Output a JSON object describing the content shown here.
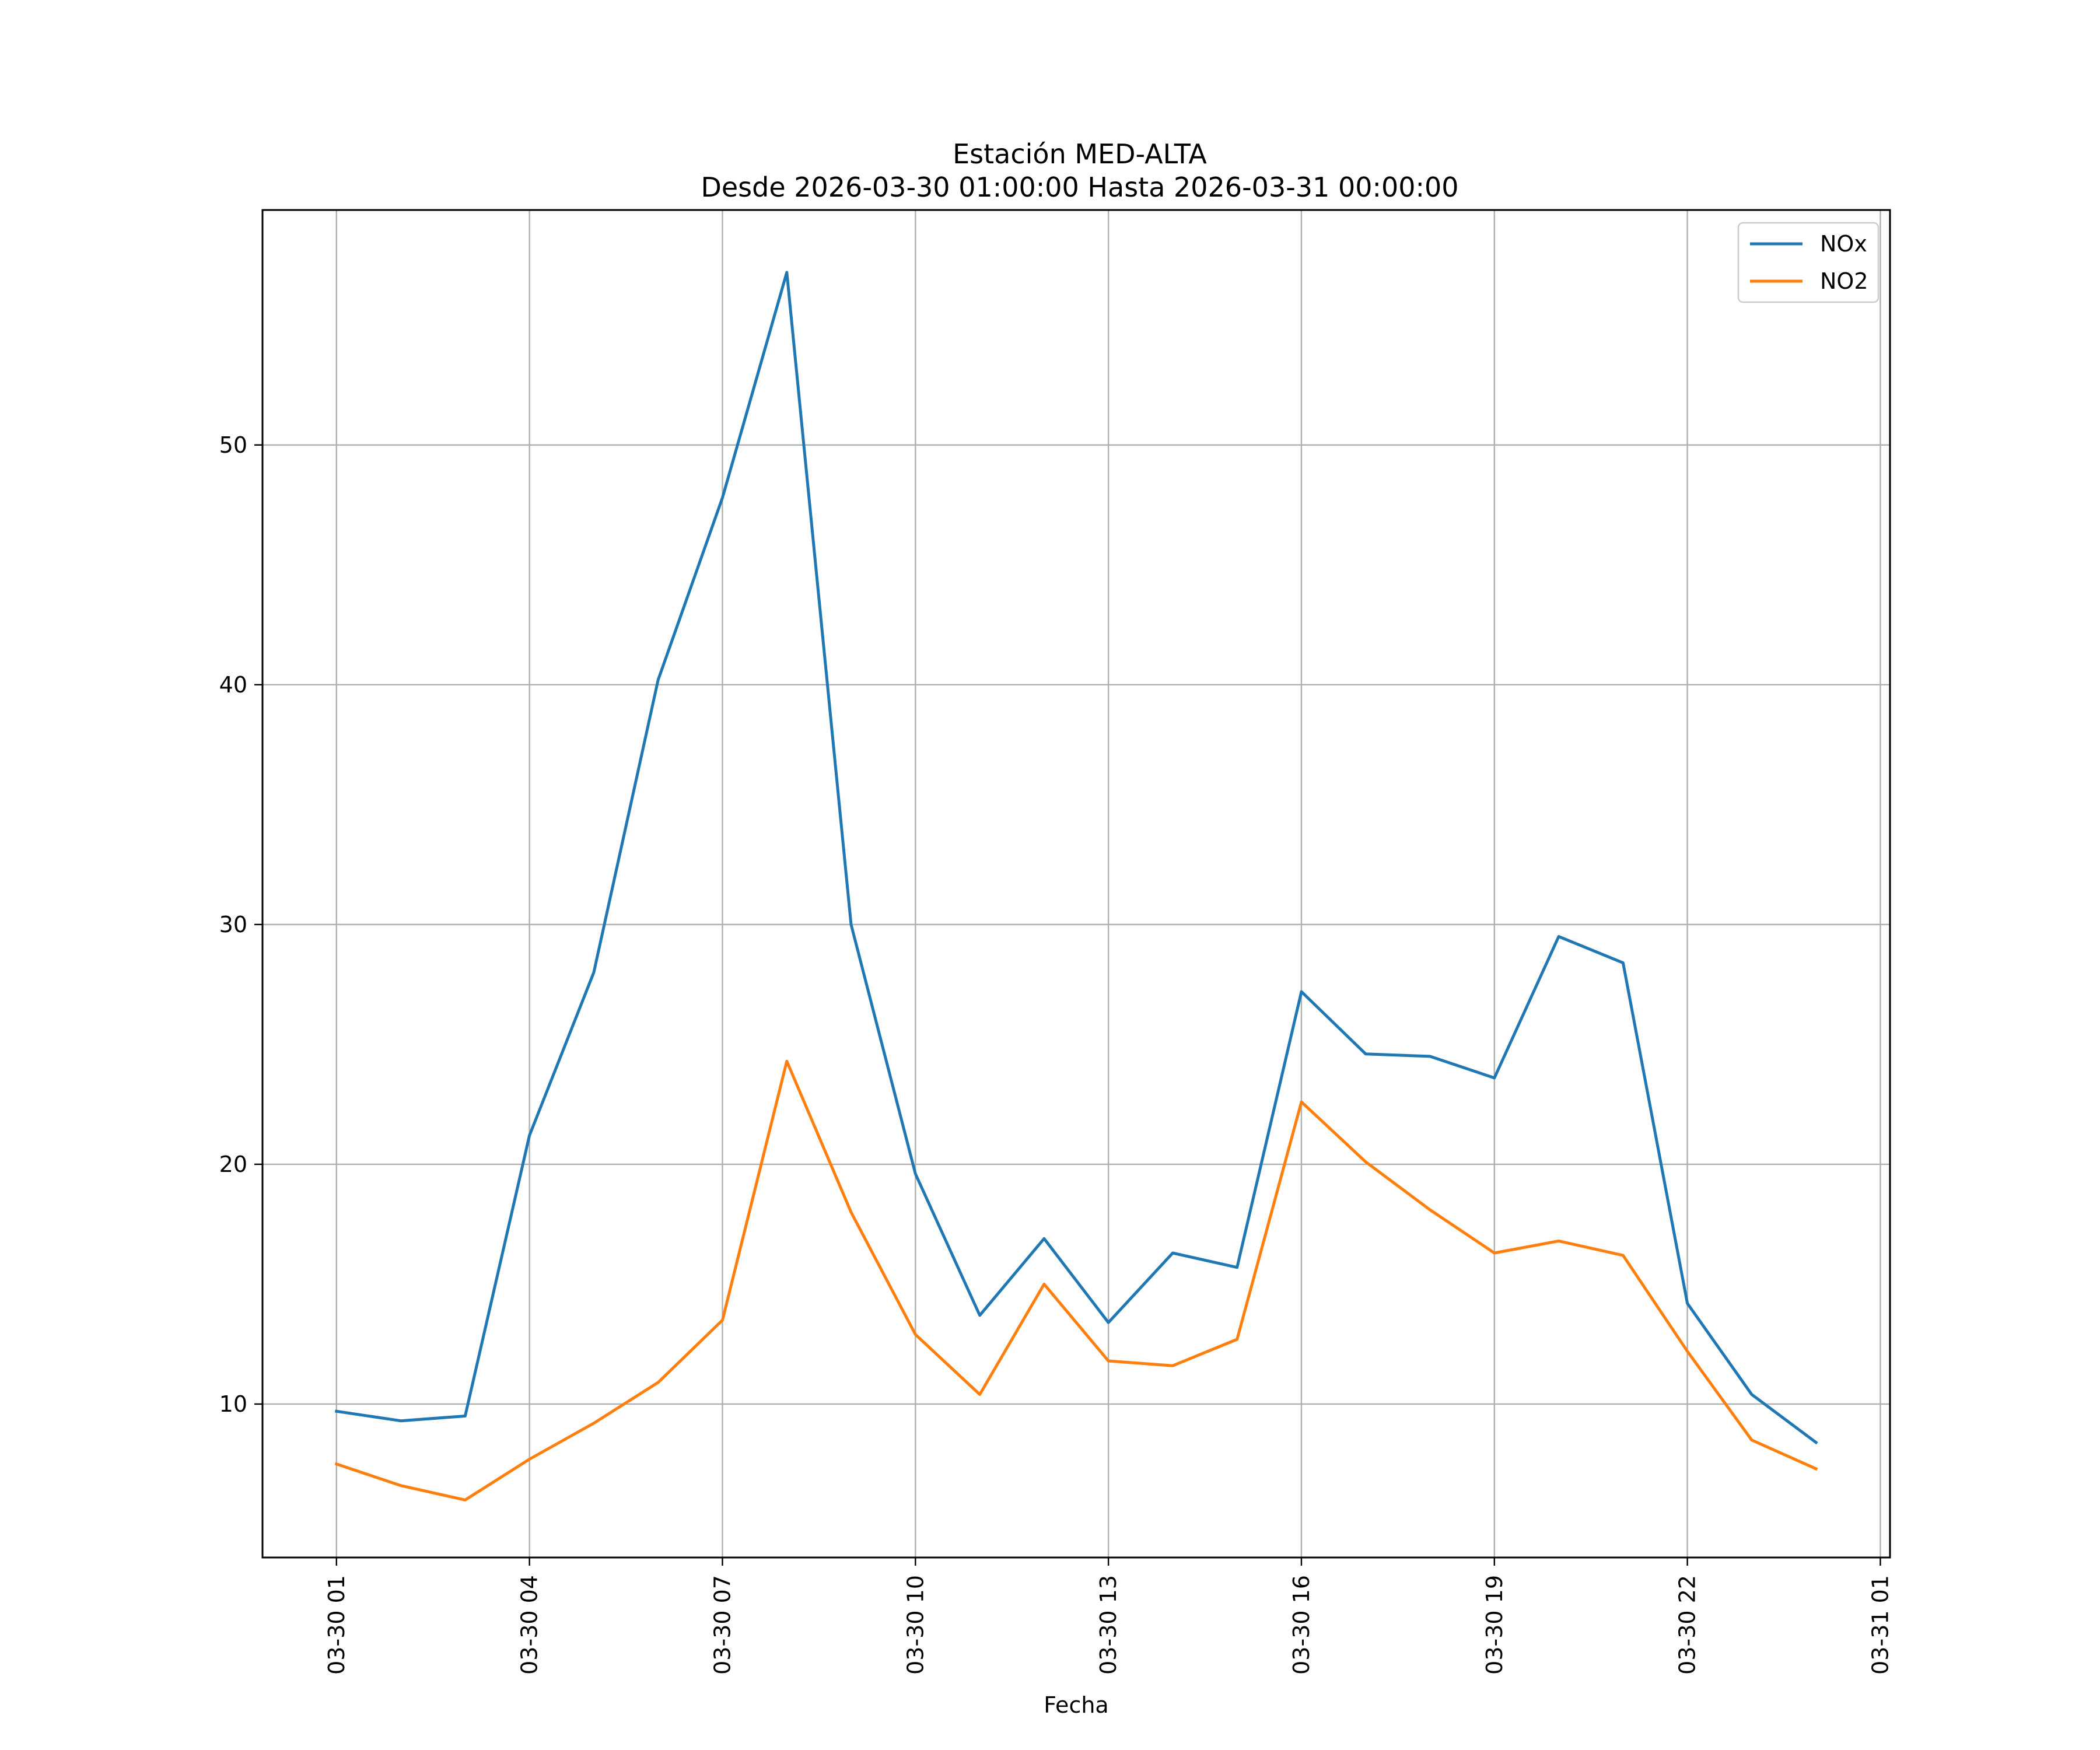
{
  "chart_data": {
    "type": "line",
    "title": "Estación MED-ALTA",
    "subtitle": "Desde 2026-03-30 01:00:00 Hasta 2026-03-31 00:00:00",
    "xlabel": "Fecha",
    "ylabel": "",
    "grid": true,
    "legend_position": "top-right",
    "x_ticks": [
      "03-30 01",
      "03-30 04",
      "03-30 07",
      "03-30 10",
      "03-30 13",
      "03-30 16",
      "03-30 19",
      "03-30 22",
      "03-31 01"
    ],
    "x_tick_hours": [
      1,
      4,
      7,
      10,
      13,
      16,
      19,
      22,
      25
    ],
    "y_ticks": [
      10,
      20,
      30,
      40,
      50
    ],
    "xlim_hours": [
      -0.15,
      25.15
    ],
    "ylim": [
      3.6,
      59.8
    ],
    "x_hours": [
      1,
      2,
      3,
      4,
      5,
      6,
      7,
      8,
      9,
      10,
      11,
      12,
      13,
      14,
      15,
      16,
      17,
      18,
      19,
      20,
      21,
      22,
      23,
      24
    ],
    "series": [
      {
        "name": "NOx",
        "color": "#1f77b4",
        "values": [
          9.7,
          9.3,
          9.5,
          21.2,
          28.0,
          40.2,
          47.8,
          57.2,
          30.0,
          19.6,
          13.7,
          16.9,
          13.4,
          16.3,
          15.7,
          27.2,
          24.6,
          24.5,
          23.6,
          29.5,
          28.4,
          14.2,
          10.4,
          8.4
        ]
      },
      {
        "name": "NO2",
        "color": "#ff7f0e",
        "values": [
          7.5,
          6.6,
          6.0,
          7.7,
          9.2,
          10.9,
          13.5,
          24.3,
          18.0,
          12.9,
          10.4,
          15.0,
          11.8,
          11.6,
          12.7,
          22.6,
          20.1,
          18.1,
          16.3,
          16.8,
          16.2,
          12.2,
          8.5,
          7.3
        ]
      }
    ]
  }
}
